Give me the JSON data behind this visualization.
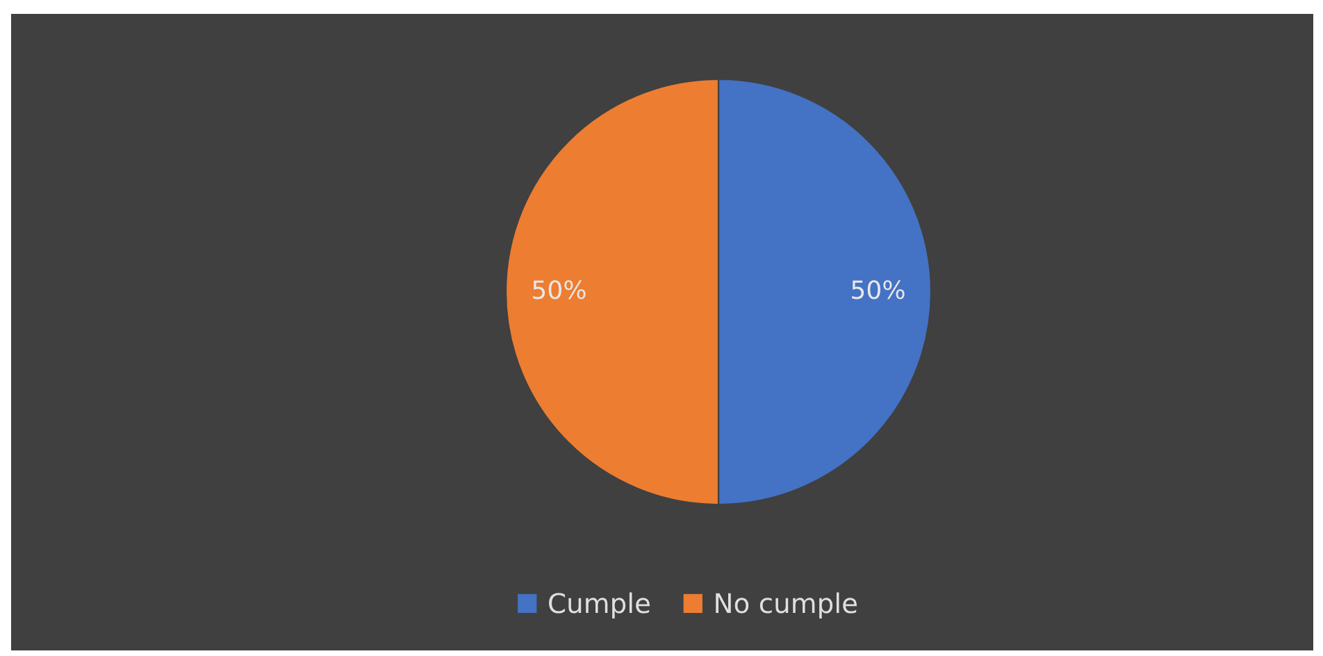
{
  "chart_data": {
    "type": "pie",
    "categories": [
      "Cumple",
      "No cumple"
    ],
    "values": [
      50,
      50
    ],
    "colors": [
      "#4472c4",
      "#ed7d31"
    ],
    "value_labels": [
      "50%",
      "50%"
    ],
    "legend": "bottom"
  }
}
